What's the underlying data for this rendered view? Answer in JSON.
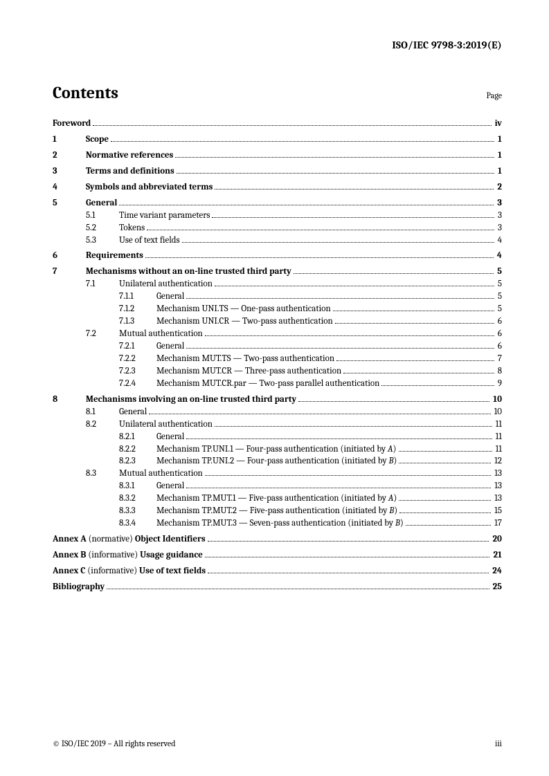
{
  "header": "ISO/IEC 9798-3:2019(E)",
  "contentsTitle": "Contents",
  "pageLabel": "Page",
  "toc": [
    {
      "type": "l0",
      "title": "Foreword",
      "page": "iv",
      "bold": true,
      "gap": "lg"
    },
    {
      "type": "l1",
      "num": "1",
      "title": "Scope",
      "page": "1",
      "bold": true,
      "gap": "sm"
    },
    {
      "type": "l1",
      "num": "2",
      "title": "Normative references",
      "page": "1",
      "bold": true,
      "gap": "sm"
    },
    {
      "type": "l1",
      "num": "3",
      "title": "Terms and definitions",
      "page": "1",
      "bold": true,
      "gap": "sm"
    },
    {
      "type": "l1",
      "num": "4",
      "title": "Symbols and abbreviated terms",
      "page": "2",
      "bold": true,
      "gap": "sm"
    },
    {
      "type": "l1",
      "num": "5",
      "title": "General",
      "page": "3",
      "bold": true,
      "gap": "sm"
    },
    {
      "type": "l2",
      "num": "5.1",
      "title": "Time variant parameters",
      "page": "3"
    },
    {
      "type": "l2",
      "num": "5.2",
      "title": "Tokens",
      "page": "3"
    },
    {
      "type": "l2",
      "num": "5.3",
      "title": "Use of text fields",
      "page": "4"
    },
    {
      "type": "l1",
      "num": "6",
      "title": "Requirements",
      "page": "4",
      "bold": true,
      "gap": "sm"
    },
    {
      "type": "l1",
      "num": "7",
      "title": "Mechanisms without an on-line trusted third party",
      "page": "5",
      "bold": true,
      "gap": "sm"
    },
    {
      "type": "l2",
      "num": "7.1",
      "title": "Unilateral authentication",
      "page": "5"
    },
    {
      "type": "l3",
      "num": "7.1.1",
      "title": "General",
      "page": "5"
    },
    {
      "type": "l3",
      "num": "7.1.2",
      "title": "Mechanism UNI.TS — One-pass authentication",
      "page": "5"
    },
    {
      "type": "l3",
      "num": "7.1.3",
      "title": "Mechanism UNI.CR — Two-pass authentication",
      "page": "6"
    },
    {
      "type": "l2",
      "num": "7.2",
      "title": "Mutual authentication",
      "page": "6"
    },
    {
      "type": "l3",
      "num": "7.2.1",
      "title": "General",
      "page": "6"
    },
    {
      "type": "l3",
      "num": "7.2.2",
      "title": "Mechanism MUT.TS — Two-pass authentication",
      "page": "7"
    },
    {
      "type": "l3",
      "num": "7.2.3",
      "title": "Mechanism MUT.CR — Three-pass authentication",
      "page": "8"
    },
    {
      "type": "l3",
      "num": "7.2.4",
      "title": "Mechanism MUT.CR.par — Two-pass parallel authentication",
      "page": "9"
    },
    {
      "type": "l1",
      "num": "8",
      "title": "Mechanisms involving an on-line trusted third party",
      "page": "10",
      "bold": true,
      "gap": "sm"
    },
    {
      "type": "l2",
      "num": "8.1",
      "title": "General",
      "page": "10"
    },
    {
      "type": "l2",
      "num": "8.2",
      "title": "Unilateral authentication",
      "page": "11"
    },
    {
      "type": "l3",
      "num": "8.2.1",
      "title": "General",
      "page": "11"
    },
    {
      "type": "l3",
      "num": "8.2.2",
      "title": "Mechanism TP.UNI.1 — Four-pass authentication (initiated by |A|)",
      "page": "11"
    },
    {
      "type": "l3",
      "num": "8.2.3",
      "title": "Mechanism TP.UNI.2 — Four-pass authentication (initiated by |B|)",
      "page": "12"
    },
    {
      "type": "l2",
      "num": "8.3",
      "title": "Mutual authentication",
      "page": "13"
    },
    {
      "type": "l3",
      "num": "8.3.1",
      "title": "General",
      "page": "13"
    },
    {
      "type": "l3",
      "num": "8.3.2",
      "title": "Mechanism TP.MUT.1 — Five-pass authentication (initiated by |A|)",
      "page": "13"
    },
    {
      "type": "l3",
      "num": "8.3.3",
      "title": "Mechanism TP.MUT.2 — Five-pass authentication (initiated by |B|)",
      "page": "15"
    },
    {
      "type": "l3",
      "num": "8.3.4",
      "title": "Mechanism TP.MUT.3 — Seven-pass authentication (initiated by |B|)",
      "page": "17"
    },
    {
      "type": "annex",
      "prefix": "Annex A",
      "paren": "(normative)",
      "title": "Object Identifiers",
      "page": "20",
      "gap": "sm"
    },
    {
      "type": "annex",
      "prefix": "Annex B",
      "paren": "(informative)",
      "title": "Usage guidance",
      "page": "21",
      "gap": "sm"
    },
    {
      "type": "annex",
      "prefix": "Annex C",
      "paren": "(informative)",
      "title": "Use of text fields",
      "page": "24",
      "gap": "sm"
    },
    {
      "type": "l0",
      "title": "Bibliography",
      "page": "25",
      "bold": true,
      "gap": "sm"
    }
  ],
  "footer": {
    "left": "© ISO/IEC 2019 – All rights reserved",
    "right": "iii"
  }
}
